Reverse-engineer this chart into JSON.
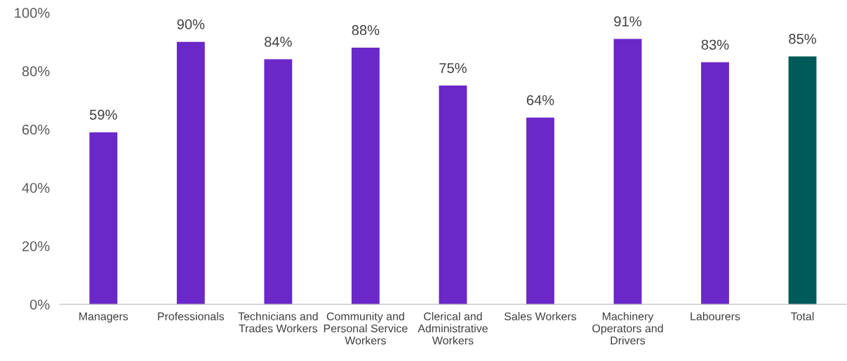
{
  "chart_data": {
    "type": "bar",
    "categories": [
      "Managers",
      "Professionals",
      "Technicians and\nTrades Workers",
      "Community and\nPersonal Service\nWorkers",
      "Clerical and\nAdministrative\nWorkers",
      "Sales Workers",
      "Machinery\nOperators and\nDrivers",
      "Labourers",
      "Total"
    ],
    "values": [
      59,
      90,
      84,
      88,
      75,
      64,
      91,
      83,
      85
    ],
    "colors": [
      "#6a28c8",
      "#6a28c8",
      "#6a28c8",
      "#6a28c8",
      "#6a28c8",
      "#6a28c8",
      "#6a28c8",
      "#6a28c8",
      "#005a5a"
    ],
    "value_labels": [
      "59%",
      "90%",
      "84%",
      "88%",
      "75%",
      "64%",
      "91%",
      "83%",
      "85%"
    ],
    "ylim": [
      0,
      100
    ],
    "yticks": [
      {
        "value": 0,
        "label": "0%"
      },
      {
        "value": 20,
        "label": "20%"
      },
      {
        "value": 40,
        "label": "40%"
      },
      {
        "value": 60,
        "label": "60%"
      },
      {
        "value": 80,
        "label": "80%"
      },
      {
        "value": 100,
        "label": "100%"
      }
    ],
    "grid": false,
    "legend": false
  }
}
